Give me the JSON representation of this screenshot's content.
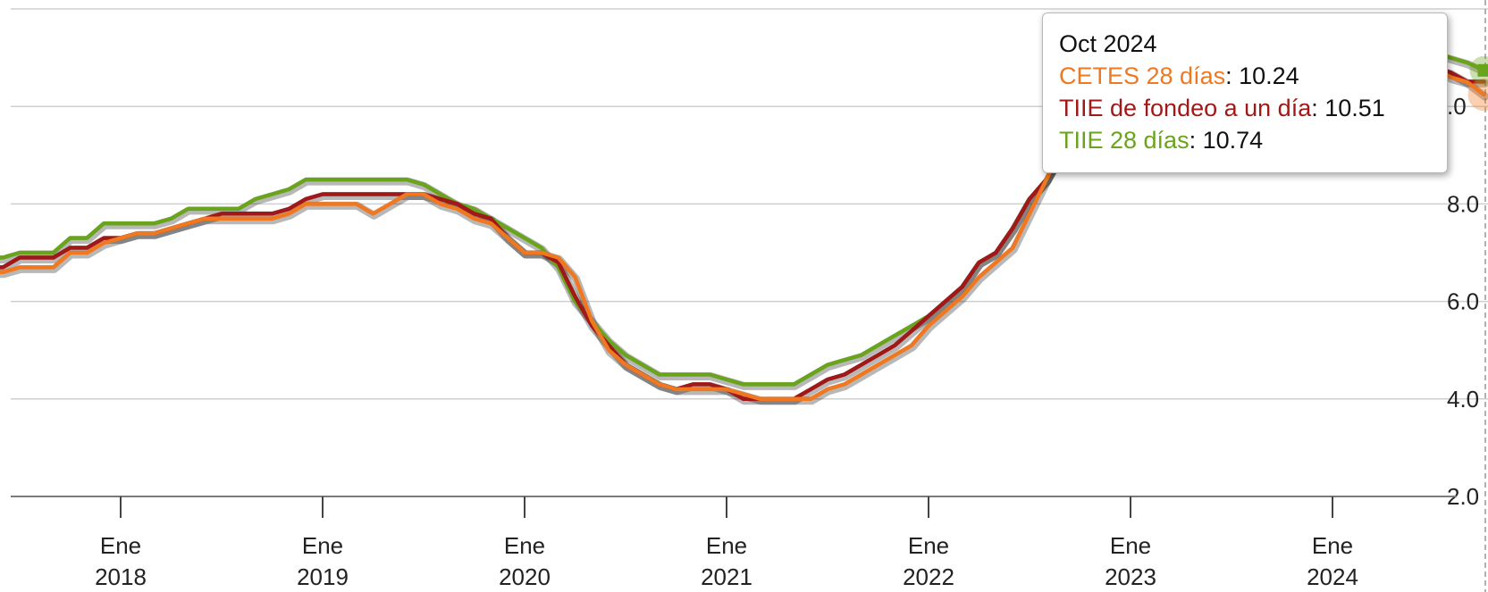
{
  "chart_data": {
    "type": "line",
    "x": [
      "2017-04",
      "2017-05",
      "2017-06",
      "2017-07",
      "2017-08",
      "2017-09",
      "2017-10",
      "2017-11",
      "2017-12",
      "2018-01",
      "2018-02",
      "2018-03",
      "2018-04",
      "2018-05",
      "2018-06",
      "2018-07",
      "2018-08",
      "2018-09",
      "2018-10",
      "2018-11",
      "2018-12",
      "2019-01",
      "2019-02",
      "2019-03",
      "2019-04",
      "2019-05",
      "2019-06",
      "2019-07",
      "2019-08",
      "2019-09",
      "2019-10",
      "2019-11",
      "2019-12",
      "2020-01",
      "2020-02",
      "2020-03",
      "2020-04",
      "2020-05",
      "2020-06",
      "2020-07",
      "2020-08",
      "2020-09",
      "2020-10",
      "2020-11",
      "2020-12",
      "2021-01",
      "2021-02",
      "2021-03",
      "2021-04",
      "2021-05",
      "2021-06",
      "2021-07",
      "2021-08",
      "2021-09",
      "2021-10",
      "2021-11",
      "2021-12",
      "2022-01",
      "2022-02",
      "2022-03",
      "2022-04",
      "2022-05",
      "2022-06",
      "2022-07",
      "2022-08",
      "2022-09",
      "2022-10",
      "2022-11",
      "2022-12",
      "2023-01",
      "2023-02",
      "2023-03",
      "2023-04",
      "2023-05",
      "2023-06",
      "2023-07",
      "2023-08",
      "2023-09",
      "2023-10",
      "2023-11",
      "2023-12",
      "2024-01",
      "2024-02",
      "2024-03",
      "2024-04",
      "2024-05",
      "2024-06",
      "2024-07",
      "2024-08",
      "2024-09",
      "2024-10"
    ],
    "series": [
      {
        "name": "CETES 28 días",
        "color": "#f07820",
        "values": [
          6.5,
          6.6,
          6.6,
          6.7,
          6.7,
          6.7,
          7.0,
          7.0,
          7.2,
          7.3,
          7.4,
          7.4,
          7.5,
          7.6,
          7.7,
          7.7,
          7.7,
          7.7,
          7.7,
          7.8,
          8.0,
          8.0,
          8.0,
          8.0,
          7.8,
          8.0,
          8.2,
          8.2,
          8.0,
          7.9,
          7.7,
          7.6,
          7.3,
          7.0,
          7.0,
          6.9,
          6.5,
          5.6,
          5.0,
          4.7,
          4.5,
          4.3,
          4.2,
          4.2,
          4.2,
          4.2,
          4.1,
          4.0,
          4.0,
          4.0,
          4.0,
          4.2,
          4.3,
          4.5,
          4.7,
          4.9,
          5.1,
          5.5,
          5.8,
          6.1,
          6.5,
          6.8,
          7.1,
          7.8,
          8.5,
          9.2,
          9.3,
          9.5,
          10.0,
          10.8,
          11.0,
          11.2,
          11.3,
          11.3,
          11.4,
          11.2,
          11.2,
          11.1,
          11.1,
          11.0,
          11.2,
          11.2,
          11.0,
          10.9,
          10.9,
          11.0,
          10.9,
          10.8,
          10.6,
          10.5,
          10.24
        ]
      },
      {
        "name": "TIIE de fondeo a un día",
        "color": "#a01818",
        "values": [
          6.6,
          6.7,
          6.7,
          6.9,
          6.9,
          6.9,
          7.1,
          7.1,
          7.3,
          7.3,
          7.4,
          7.4,
          7.5,
          7.6,
          7.7,
          7.8,
          7.8,
          7.8,
          7.8,
          7.9,
          8.1,
          8.2,
          8.2,
          8.2,
          8.2,
          8.2,
          8.2,
          8.2,
          8.1,
          8.0,
          7.8,
          7.7,
          7.3,
          7.0,
          7.0,
          6.8,
          6.1,
          5.5,
          5.1,
          4.7,
          4.5,
          4.3,
          4.2,
          4.3,
          4.3,
          4.2,
          4.0,
          4.0,
          4.0,
          4.0,
          4.2,
          4.4,
          4.5,
          4.7,
          4.9,
          5.1,
          5.4,
          5.7,
          6.0,
          6.3,
          6.8,
          7.0,
          7.5,
          8.1,
          8.5,
          9.1,
          9.3,
          9.8,
          10.3,
          10.8,
          11.1,
          11.2,
          11.3,
          11.3,
          11.3,
          11.3,
          11.3,
          11.3,
          11.3,
          11.2,
          11.2,
          11.1,
          11.0,
          11.0,
          10.9,
          11.0,
          10.9,
          10.8,
          10.7,
          10.51,
          10.51
        ]
      },
      {
        "name": "TIIE 28 días",
        "color": "#6aa31c",
        "values": [
          6.9,
          6.9,
          6.9,
          7.0,
          7.0,
          7.0,
          7.3,
          7.3,
          7.6,
          7.6,
          7.6,
          7.6,
          7.7,
          7.9,
          7.9,
          7.9,
          7.9,
          8.1,
          8.2,
          8.3,
          8.5,
          8.5,
          8.5,
          8.5,
          8.5,
          8.5,
          8.5,
          8.4,
          8.2,
          8.0,
          7.9,
          7.7,
          7.5,
          7.3,
          7.1,
          6.7,
          6.0,
          5.6,
          5.2,
          4.9,
          4.7,
          4.5,
          4.5,
          4.5,
          4.5,
          4.4,
          4.3,
          4.3,
          4.3,
          4.3,
          4.5,
          4.7,
          4.8,
          4.9,
          5.1,
          5.3,
          5.5,
          5.7,
          6.0,
          6.3,
          6.8,
          7.0,
          7.5,
          8.1,
          8.5,
          9.1,
          9.3,
          9.8,
          10.4,
          10.8,
          11.1,
          11.3,
          11.5,
          11.5,
          11.5,
          11.5,
          11.5,
          11.5,
          11.5,
          11.5,
          11.5,
          11.5,
          11.4,
          11.3,
          11.2,
          11.3,
          11.2,
          11.1,
          11.0,
          10.9,
          10.74
        ]
      }
    ],
    "y_ticks": [
      "2.0",
      "4.0",
      "6.0",
      "8.0",
      ".0"
    ],
    "x_ticks": [
      {
        "x": "2018-01",
        "line1": "Ene",
        "line2": "2018"
      },
      {
        "x": "2019-01",
        "line1": "Ene",
        "line2": "2019"
      },
      {
        "x": "2020-01",
        "line1": "Ene",
        "line2": "2020"
      },
      {
        "x": "2021-01",
        "line1": "Ene",
        "line2": "2021"
      },
      {
        "x": "2022-01",
        "line1": "Ene",
        "line2": "2022"
      },
      {
        "x": "2023-01",
        "line1": "Ene",
        "line2": "2023"
      },
      {
        "x": "2024-01",
        "line1": "Ene",
        "line2": "2024"
      }
    ],
    "ylim": [
      2,
      12
    ],
    "grid": true,
    "legend": "none"
  },
  "tooltip": {
    "title": "Oct 2024",
    "rows": [
      {
        "label": "CETES 28 días",
        "value": "10.24",
        "color": "#f07820"
      },
      {
        "label": "TIIE de fondeo a un día",
        "value": "10.51",
        "color": "#a01818"
      },
      {
        "label": "TIIE 28 días",
        "value": "10.74",
        "color": "#6aa31c"
      }
    ]
  }
}
